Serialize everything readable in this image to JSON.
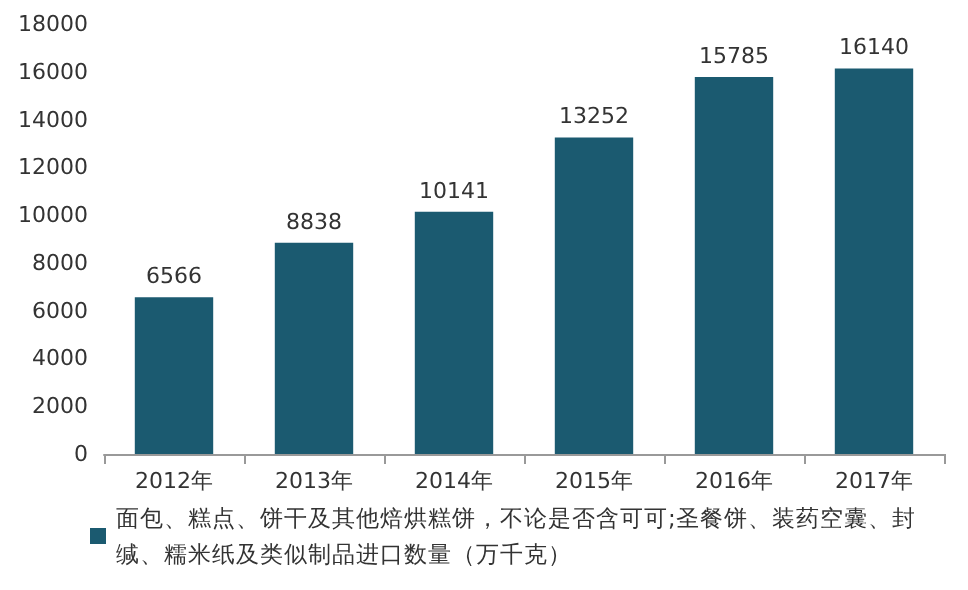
{
  "chart_data": {
    "type": "bar",
    "categories": [
      "2012年",
      "2013年",
      "2014年",
      "2015年",
      "2016年",
      "2017年"
    ],
    "series": [
      {
        "name": "面包、糕点、饼干及其他焙烘糕饼，不论是否含可可;圣餐饼、装药空囊、封缄、糯米纸及类似制品进口数量（万千克）",
        "color": "#1b5a70",
        "values": [
          6566,
          8838,
          10141,
          13252,
          15785,
          16140
        ]
      }
    ],
    "ylim": [
      0,
      18000
    ],
    "yticks": [
      0,
      2000,
      4000,
      6000,
      8000,
      10000,
      12000,
      14000,
      16000,
      18000
    ],
    "data_labels": true,
    "grid": false,
    "legend": "bottom"
  }
}
